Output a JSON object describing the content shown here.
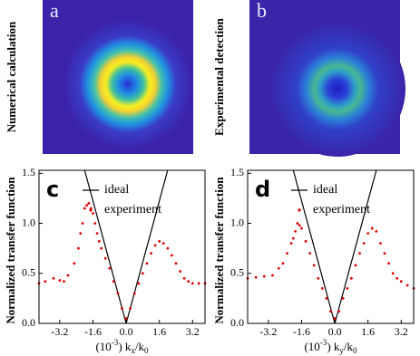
{
  "chart_data": [
    {
      "type": "image",
      "label": "a",
      "ylabel": "Numerical calculation"
    },
    {
      "type": "image",
      "label": "b",
      "ylabel": "Experimental detection"
    },
    {
      "type": "line",
      "label": "c",
      "ylabel": "Normalized transfer function",
      "xlabel": [
        "(10",
        "-3",
        ") k",
        "x",
        "/k",
        "0"
      ],
      "xlim": [
        -4.2,
        3.8
      ],
      "ylim": [
        0,
        1.53
      ],
      "xticks": [
        -3.2,
        -1.6,
        {
          "value": 0,
          "label": "0.0"
        },
        1.6,
        3.2
      ],
      "yticks": [
        {
          "value": 0,
          "label": "0.0"
        },
        0.5,
        {
          "value": 1,
          "label": "1.0"
        },
        1.5
      ],
      "series": [
        {
          "name": "ideal",
          "type": "line",
          "color": "#000000",
          "x": [
            -2,
            0,
            2
          ],
          "values": [
            1.53,
            0,
            1.53
          ]
        },
        {
          "name": "experiment",
          "type": "scatter",
          "color": "#e00000",
          "x": [
            -4.2,
            -3.9,
            -3.5,
            -3.2,
            -3.0,
            -2.8,
            -2.5,
            -2.3,
            -2.2,
            -2.1,
            -2.0,
            -1.9,
            -1.8,
            -1.7,
            -1.6,
            -1.5,
            -1.4,
            -1.3,
            -1.2,
            -1.0,
            -0.8,
            -0.6,
            -0.4,
            -0.2,
            0,
            0.2,
            0.4,
            0.6,
            0.8,
            1.0,
            1.2,
            1.4,
            1.6,
            1.8,
            2.0,
            2.2,
            2.4,
            2.6,
            2.8,
            3.0,
            3.2,
            3.5,
            3.8
          ],
          "values": [
            0.4,
            0.42,
            0.45,
            0.43,
            0.42,
            0.48,
            0.6,
            0.75,
            0.9,
            1.0,
            1.15,
            1.18,
            1.2,
            1.15,
            1.1,
            1.0,
            0.9,
            0.82,
            0.75,
            0.65,
            0.55,
            0.42,
            0.3,
            0.15,
            0.05,
            0.15,
            0.3,
            0.4,
            0.5,
            0.6,
            0.7,
            0.78,
            0.82,
            0.8,
            0.75,
            0.68,
            0.6,
            0.52,
            0.45,
            0.42,
            0.4,
            0.4,
            0.4
          ]
        }
      ],
      "legend": "upper right"
    },
    {
      "type": "line",
      "label": "d",
      "ylabel": "Normalized transfer function",
      "xlabel": [
        "(10",
        "-3",
        ") k",
        "y",
        "/k",
        "0"
      ],
      "xlim": [
        -4.2,
        3.8
      ],
      "ylim": [
        0,
        1.53
      ],
      "xticks": [
        -3.2,
        -1.6,
        {
          "value": 0,
          "label": "0.0"
        },
        1.6,
        3.2
      ],
      "yticks": [
        {
          "value": 0,
          "label": "0.0"
        },
        0.5,
        {
          "value": 1,
          "label": "1.0"
        },
        1.5
      ],
      "series": [
        {
          "name": "ideal",
          "type": "line",
          "color": "#000000",
          "x": [
            -2,
            0,
            2
          ],
          "values": [
            1.53,
            0,
            1.53
          ]
        },
        {
          "name": "experiment",
          "type": "scatter",
          "color": "#e00000",
          "x": [
            -4.2,
            -3.8,
            -3.4,
            -3.0,
            -2.7,
            -2.5,
            -2.3,
            -2.1,
            -2.0,
            -1.9,
            -1.8,
            -1.7,
            -1.6,
            -1.4,
            -1.2,
            -1.0,
            -0.8,
            -0.6,
            -0.4,
            -0.2,
            0,
            0.2,
            0.4,
            0.6,
            0.8,
            1.0,
            1.2,
            1.4,
            1.6,
            1.8,
            2.0,
            2.2,
            2.4,
            2.6,
            2.8,
            3.0,
            3.2,
            3.5,
            3.8
          ],
          "values": [
            0.45,
            0.46,
            0.47,
            0.48,
            0.55,
            0.6,
            0.7,
            0.8,
            0.85,
            0.92,
            1.0,
            0.98,
            0.95,
            0.82,
            0.7,
            0.58,
            0.45,
            0.35,
            0.25,
            0.12,
            0.05,
            0.12,
            0.25,
            0.35,
            0.45,
            0.58,
            0.7,
            0.8,
            0.9,
            0.95,
            0.92,
            0.8,
            0.7,
            0.6,
            0.5,
            0.45,
            0.42,
            0.38,
            0.35
          ]
        }
      ],
      "legend": "upper right"
    }
  ]
}
